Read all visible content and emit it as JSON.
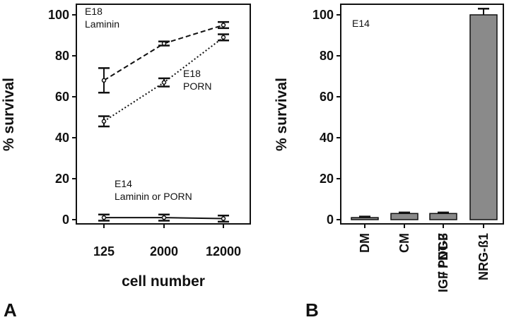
{
  "chart_data": [
    {
      "type": "line",
      "panel_label": "A",
      "xlabel": "cell number",
      "ylabel": "% survival",
      "ylim": [
        0,
        100
      ],
      "yticks": [
        "0",
        "20",
        "40",
        "60",
        "80",
        "100"
      ],
      "categories": [
        "125",
        "2000",
        "12000"
      ],
      "grid": false,
      "series": [
        {
          "name": "E18 Laminin",
          "label_lines": [
            "E18",
            "Laminin"
          ],
          "style": "dashed",
          "values": [
            68,
            86,
            95
          ],
          "errors": [
            6,
            1,
            1.5
          ]
        },
        {
          "name": "E18 PORN",
          "label_lines": [
            "E18",
            "PORN"
          ],
          "style": "dotted",
          "values": [
            48,
            67,
            89
          ],
          "errors": [
            2.5,
            2,
            1.5
          ]
        },
        {
          "name": "E14 Laminin or PORN",
          "label_lines": [
            "E14",
            "Laminin or PORN"
          ],
          "style": "solid",
          "values": [
            1,
            1,
            0.5
          ],
          "errors": [
            1.5,
            1.5,
            1.5
          ]
        }
      ]
    },
    {
      "type": "bar",
      "panel_label": "B",
      "ylabel": "% survival",
      "ylim": [
        0,
        100
      ],
      "yticks": [
        "0",
        "20",
        "40",
        "60",
        "80",
        "100"
      ],
      "annotation": "E14",
      "grid": false,
      "categories": [
        "DM",
        "CM",
        "IGF / NT-3 / PDGF",
        "NRG-ß1"
      ],
      "category_lines": [
        [
          "DM"
        ],
        [
          "CM"
        ],
        [
          "IGF / NT-3",
          "/ PDGF"
        ],
        [
          "NRG-ß1"
        ]
      ],
      "values": [
        1,
        3,
        3,
        100
      ],
      "errors": [
        0.5,
        0.5,
        0.5,
        3
      ],
      "bar_color": "#8a8a8a"
    }
  ]
}
